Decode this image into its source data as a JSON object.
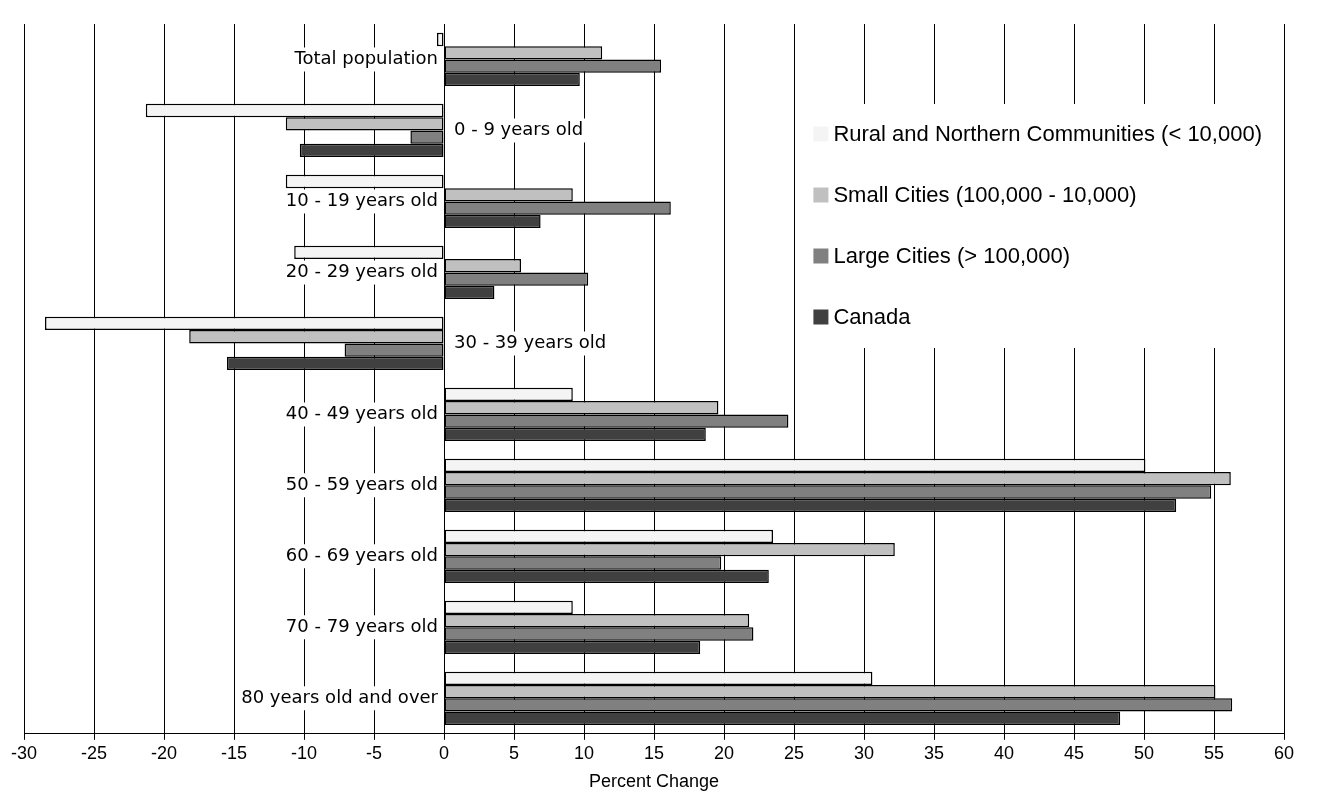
{
  "chart_data": {
    "type": "bar",
    "orientation": "horizontal",
    "xlabel": "Percent Change",
    "categories": [
      "Total population",
      "0 - 9 years old",
      "10 - 19 years old",
      "20 - 29 years old",
      "30 - 39 years old",
      "40 - 49 years old",
      "50 - 59 years old",
      "60 - 69 years old",
      "70 - 79 years old",
      "80 years old and over"
    ],
    "series": [
      {
        "name": "Rural and Northern Communities (< 10,000)",
        "color": "#f4f4f4",
        "values": [
          -0.5,
          -21.3,
          -11.3,
          -10.7,
          -28.5,
          9.2,
          50.1,
          23.5,
          9.2,
          30.6
        ]
      },
      {
        "name": "Small Cities (100,000 - 10,000)",
        "color": "#c0c0c0",
        "values": [
          11.3,
          -11.3,
          9.2,
          5.5,
          -18.2,
          19.6,
          56.2,
          32.2,
          21.8,
          55.1
        ]
      },
      {
        "name": "Large Cities (> 100,000)",
        "color": "#808080",
        "values": [
          15.5,
          -2.4,
          16.2,
          10.3,
          -7.1,
          24.6,
          54.8,
          19.8,
          22.1,
          56.3
        ]
      },
      {
        "name": "Canada",
        "color": "#404040",
        "values": [
          9.7,
          -10.3,
          6.9,
          3.6,
          -15.5,
          18.7,
          52.3,
          23.2,
          18.3,
          48.3
        ]
      }
    ],
    "xlim": [
      -30,
      60
    ],
    "xticks": [
      -30,
      -25,
      -20,
      -15,
      -10,
      -5,
      0,
      5,
      10,
      15,
      20,
      25,
      30,
      35,
      40,
      45,
      50,
      55,
      60
    ],
    "grid": "x",
    "legend": "top right"
  }
}
